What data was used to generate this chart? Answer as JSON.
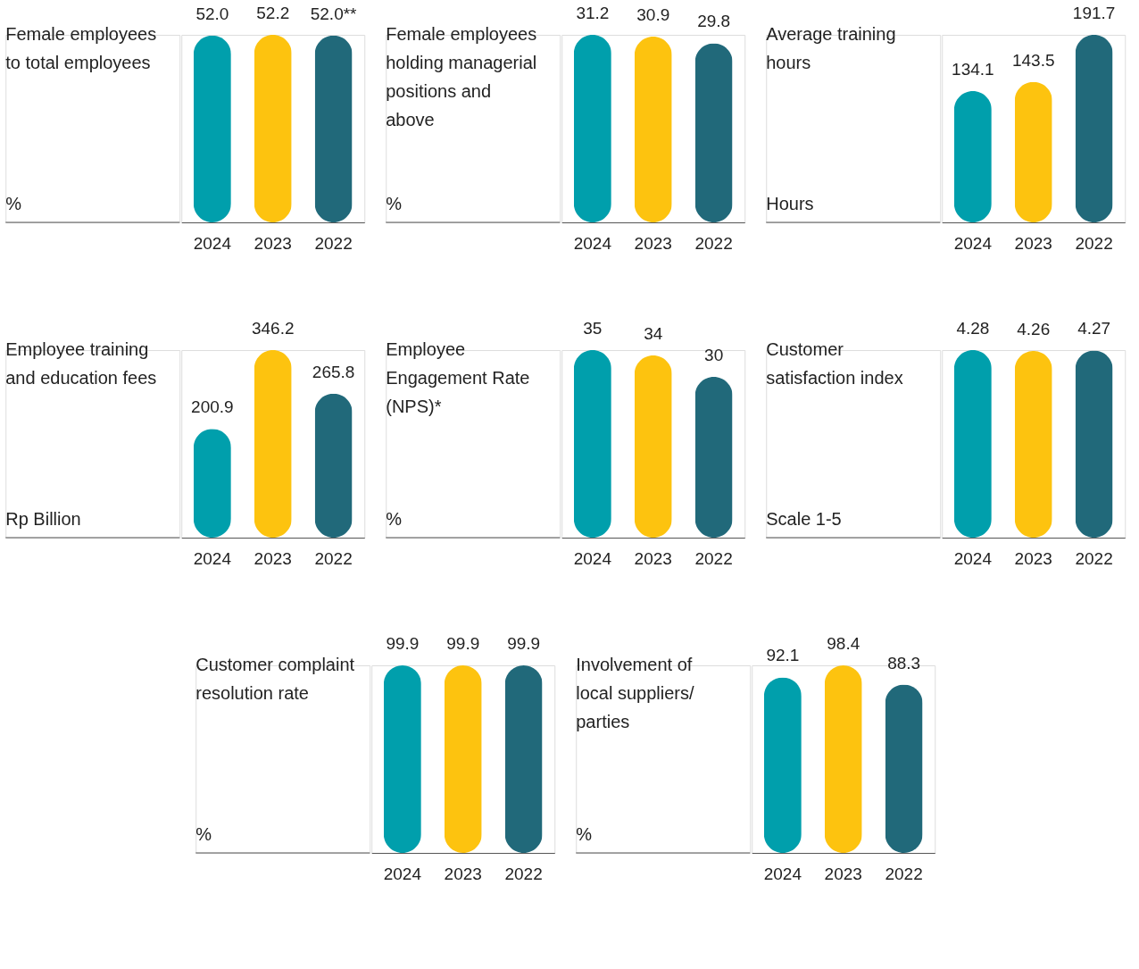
{
  "chart_data": [
    {
      "type": "bar",
      "title": "Female employees to total employees",
      "ylabel": "%",
      "categories": [
        "2024",
        "2023",
        "2022"
      ],
      "values": [
        52.0,
        52.2,
        52.0
      ],
      "colors": [
        "#009fac",
        "#fdc30f",
        "#21697a"
      ],
      "value_labels": [
        "52.0",
        "52.2",
        "52.0**"
      ]
    },
    {
      "type": "bar",
      "title": "Female employees holding managerial positions and above",
      "ylabel": "%",
      "categories": [
        "2024",
        "2023",
        "2022"
      ],
      "values": [
        31.2,
        30.9,
        29.8
      ],
      "colors": [
        "#009fac",
        "#fdc30f",
        "#21697a"
      ],
      "value_labels": [
        "31.2",
        "30.9",
        "29.8"
      ]
    },
    {
      "type": "bar",
      "title": "Average training hours",
      "ylabel": "Hours",
      "categories": [
        "2024",
        "2023",
        "2022"
      ],
      "values": [
        134.1,
        143.5,
        191.7
      ],
      "colors": [
        "#009fac",
        "#fdc30f",
        "#21697a"
      ],
      "value_labels": [
        "134.1",
        "143.5",
        "191.7"
      ]
    },
    {
      "type": "bar",
      "title": "Employee training and education fees",
      "ylabel": "Rp Billion",
      "categories": [
        "2024",
        "2023",
        "2022"
      ],
      "values": [
        200.9,
        346.2,
        265.8
      ],
      "colors": [
        "#009fac",
        "#fdc30f",
        "#21697a"
      ],
      "value_labels": [
        "200.9",
        "346.2",
        "265.8"
      ]
    },
    {
      "type": "bar",
      "title": "Employee Engagement Rate (NPS)*",
      "ylabel": "%",
      "categories": [
        "2024",
        "2023",
        "2022"
      ],
      "values": [
        35,
        34,
        30
      ],
      "colors": [
        "#009fac",
        "#fdc30f",
        "#21697a"
      ],
      "value_labels": [
        "35",
        "34",
        "30"
      ]
    },
    {
      "type": "bar",
      "title": "Customer satisfaction index",
      "ylabel": "Scale 1-5",
      "categories": [
        "2024",
        "2023",
        "2022"
      ],
      "values": [
        4.28,
        4.26,
        4.27
      ],
      "colors": [
        "#009fac",
        "#fdc30f",
        "#21697a"
      ],
      "value_labels": [
        "4.28",
        "4.26",
        "4.27"
      ]
    },
    {
      "type": "bar",
      "title": "Customer complaint resolution rate",
      "ylabel": "%",
      "categories": [
        "2024",
        "2023",
        "2022"
      ],
      "values": [
        99.9,
        99.9,
        99.9
      ],
      "colors": [
        "#009fac",
        "#fdc30f",
        "#21697a"
      ],
      "value_labels": [
        "99.9",
        "99.9",
        "99.9"
      ]
    },
    {
      "type": "bar",
      "title": "Involvement of local suppliers/ parties",
      "ylabel": "%",
      "categories": [
        "2024",
        "2023",
        "2022"
      ],
      "values": [
        92.1,
        98.4,
        88.3
      ],
      "colors": [
        "#009fac",
        "#fdc30f",
        "#21697a"
      ],
      "value_labels": [
        "92.1",
        "98.4",
        "88.3"
      ]
    }
  ]
}
